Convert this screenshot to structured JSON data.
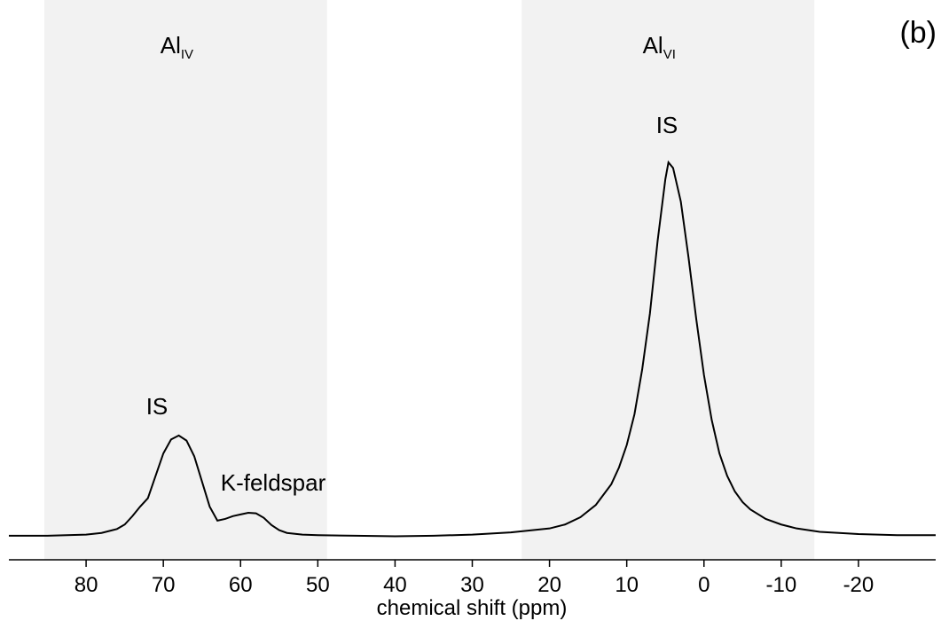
{
  "chart_data": {
    "type": "line",
    "panel_label": "(b)",
    "x_label": "chemical shift (ppm)",
    "x": [
      90,
      85,
      80,
      78,
      76,
      75,
      74,
      73,
      72,
      71,
      70,
      69,
      68,
      67,
      66,
      65,
      64,
      63,
      62,
      61,
      60,
      59,
      58,
      57,
      56,
      55,
      54,
      52,
      50,
      45,
      40,
      35,
      30,
      25,
      20,
      18,
      16,
      14,
      12,
      11,
      10,
      9,
      8,
      7,
      6,
      5,
      4.6,
      4,
      3,
      2,
      1,
      0,
      -1,
      -2,
      -3,
      -4,
      -5,
      -6,
      -8,
      -10,
      -12,
      -15,
      -20,
      -25,
      -30
    ],
    "series": [
      {
        "color": "#000000",
        "values": [
          4.3,
          4.3,
          4.5,
          4.8,
          5.5,
          6.3,
          7.8,
          9.5,
          11,
          15,
          19,
          21.5,
          22.2,
          21.3,
          18.5,
          14,
          9.5,
          7.0,
          7.3,
          7.8,
          8.1,
          8.4,
          8.3,
          7.5,
          6.2,
          5.3,
          4.8,
          4.5,
          4.4,
          4.3,
          4.2,
          4.3,
          4.5,
          4.9,
          5.6,
          6.3,
          7.6,
          9.8,
          13.5,
          16.5,
          20.5,
          26,
          34,
          44,
          57,
          68,
          71,
          70,
          64,
          54,
          43,
          33,
          25,
          19,
          15,
          12.2,
          10.3,
          9,
          7.3,
          6.3,
          5.6,
          5,
          4.6,
          4.4,
          4.4
        ]
      }
    ],
    "xlim": [
      90,
      -30
    ],
    "xticks": [
      80,
      70,
      60,
      50,
      40,
      30,
      20,
      10,
      0,
      -10,
      -20
    ],
    "ylim": [
      0,
      100
    ],
    "regions": [
      {
        "range": [
          85.4,
          48.8
        ],
        "label": "Al",
        "sub": "IV"
      },
      {
        "range": [
          23.6,
          -14.3
        ],
        "label": "Al",
        "sub": "VI"
      }
    ],
    "annotations": [
      "IS",
      "K-feldspar",
      "IS"
    ]
  }
}
